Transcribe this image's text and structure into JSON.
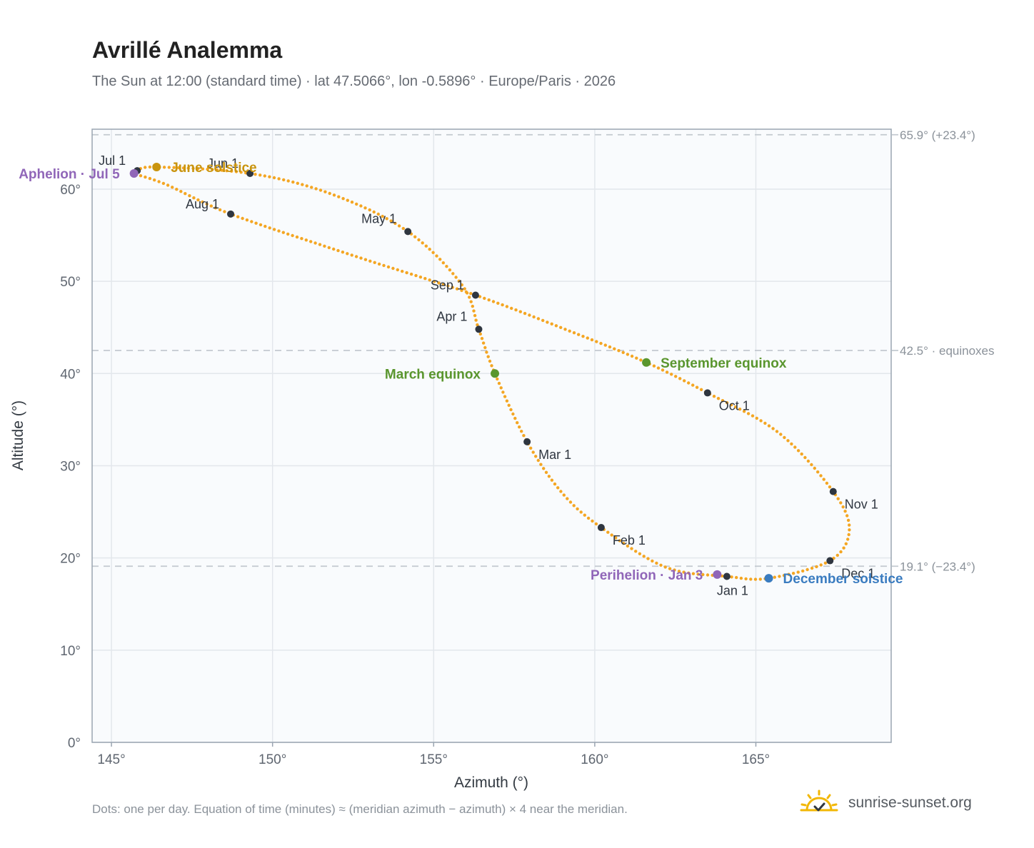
{
  "header": {
    "title": "Avrillé Analemma",
    "subtitle": "The Sun at 12:00 (standard time) · lat 47.5066°, lon -0.5896° · Europe/Paris · 2026"
  },
  "footer": {
    "note": "Dots: one per day. Equation of time (minutes) ≈ (meridian azimuth − azimuth) × 4 near the meridian.",
    "brand": "sunrise-sunset.org"
  },
  "colors": {
    "curve": "#f4a623",
    "month_dot": "#2f3640",
    "aphelion": "#9066b8",
    "perihelion": "#9066b8",
    "june_solstice": "#c9940e",
    "december_solstice": "#3a7cc0",
    "equinox": "#5a962e",
    "plot_bg": "#f9fbfd",
    "grid": "#e3e7ec",
    "ref_line": "#c3c9d0",
    "axis": "#9aa5b1"
  },
  "icons": {
    "brand_logo": "sun-icon"
  },
  "chart_data": {
    "type": "scatter",
    "title": "Avrillé Analemma",
    "xlabel": "Azimuth (°)",
    "ylabel": "Altitude (°)",
    "xlim": [
      144.4,
      169.2
    ],
    "ylim": [
      0,
      66.5
    ],
    "x_ticks": [
      145,
      150,
      155,
      160,
      165
    ],
    "x_tick_labels": [
      "145°",
      "150°",
      "155°",
      "160°",
      "165°"
    ],
    "y_ticks": [
      0,
      10,
      20,
      30,
      40,
      50,
      60
    ],
    "y_tick_labels": [
      "0°",
      "10°",
      "20°",
      "30°",
      "40°",
      "50°",
      "60°"
    ],
    "grid": true,
    "reference_lines": [
      {
        "y": 65.9,
        "label": "65.9° (+23.4°)"
      },
      {
        "y": 42.5,
        "label": "42.5° · equinoxes"
      },
      {
        "y": 19.1,
        "label": "19.1° (−23.4°)"
      }
    ],
    "curve_anchors": [
      {
        "x": 164.1,
        "y": 18.0
      },
      {
        "x": 162.2,
        "y": 19.0
      },
      {
        "x": 160.2,
        "y": 23.3
      },
      {
        "x": 159.0,
        "y": 27.0
      },
      {
        "x": 157.9,
        "y": 32.6
      },
      {
        "x": 156.9,
        "y": 40.0
      },
      {
        "x": 156.4,
        "y": 44.8
      },
      {
        "x": 155.9,
        "y": 49.5
      },
      {
        "x": 154.2,
        "y": 55.4
      },
      {
        "x": 151.8,
        "y": 59.5
      },
      {
        "x": 149.3,
        "y": 61.7
      },
      {
        "x": 146.4,
        "y": 62.4
      },
      {
        "x": 145.8,
        "y": 62.0
      },
      {
        "x": 145.7,
        "y": 61.7
      },
      {
        "x": 146.7,
        "y": 60.5
      },
      {
        "x": 148.7,
        "y": 57.3
      },
      {
        "x": 152.5,
        "y": 52.8
      },
      {
        "x": 156.3,
        "y": 48.5
      },
      {
        "x": 159.3,
        "y": 44.5
      },
      {
        "x": 161.6,
        "y": 41.2
      },
      {
        "x": 163.5,
        "y": 37.9
      },
      {
        "x": 165.7,
        "y": 33.6
      },
      {
        "x": 167.4,
        "y": 27.2
      },
      {
        "x": 167.9,
        "y": 23.0
      },
      {
        "x": 167.3,
        "y": 19.7
      },
      {
        "x": 165.4,
        "y": 17.8
      },
      {
        "x": 164.1,
        "y": 18.0
      }
    ],
    "month_markers": [
      {
        "label": "Jan 1",
        "x": 164.1,
        "y": 18.0,
        "pos": "below"
      },
      {
        "label": "Feb 1",
        "x": 160.2,
        "y": 23.3,
        "pos": "right"
      },
      {
        "label": "Mar 1",
        "x": 157.9,
        "y": 32.6,
        "pos": "right"
      },
      {
        "label": "Apr 1",
        "x": 156.4,
        "y": 44.8,
        "pos": "left"
      },
      {
        "label": "May 1",
        "x": 154.2,
        "y": 55.4,
        "pos": "left"
      },
      {
        "label": "Jun 1",
        "x": 149.3,
        "y": 61.7,
        "pos": "left-up"
      },
      {
        "label": "Jul 1",
        "x": 145.8,
        "y": 62.0,
        "pos": "left-up"
      },
      {
        "label": "Aug 1",
        "x": 148.7,
        "y": 57.3,
        "pos": "left-up"
      },
      {
        "label": "Sep 1",
        "x": 156.3,
        "y": 48.5,
        "pos": "left-up"
      },
      {
        "label": "Oct 1",
        "x": 163.5,
        "y": 37.9,
        "pos": "right"
      },
      {
        "label": "Nov 1",
        "x": 167.4,
        "y": 27.2,
        "pos": "right"
      },
      {
        "label": "Dec 1",
        "x": 167.3,
        "y": 19.7,
        "pos": "right"
      }
    ],
    "events": [
      {
        "label": "Aphelion · Jul 5",
        "x": 145.7,
        "y": 61.7,
        "color": "#9066b8",
        "pos": "left"
      },
      {
        "label": "June solstice",
        "x": 146.4,
        "y": 62.4,
        "color": "#c9940e",
        "pos": "right"
      },
      {
        "label": "March equinox",
        "x": 156.9,
        "y": 40.0,
        "color": "#5a962e",
        "pos": "left"
      },
      {
        "label": "September equinox",
        "x": 161.6,
        "y": 41.2,
        "color": "#5a962e",
        "pos": "right"
      },
      {
        "label": "Perihelion · Jan 3",
        "x": 163.8,
        "y": 18.2,
        "color": "#9066b8",
        "pos": "left"
      },
      {
        "label": "December solstice",
        "x": 165.4,
        "y": 17.8,
        "color": "#3a7cc0",
        "pos": "right"
      }
    ]
  }
}
